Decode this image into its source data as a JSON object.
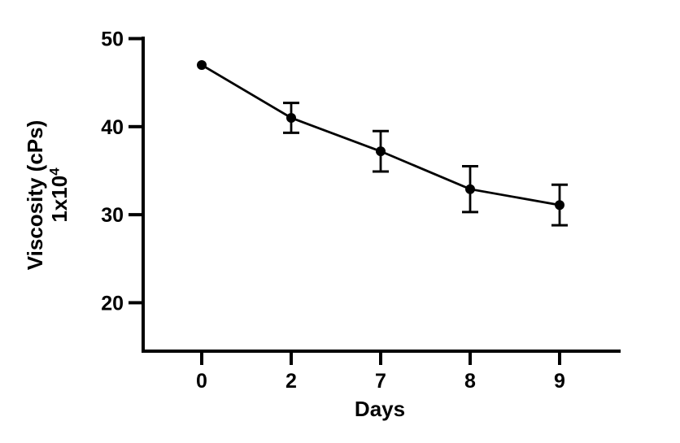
{
  "figure": {
    "background_color": "#ffffff",
    "ink_color": "#000000",
    "y_axis_title_line1": "Viscosity (cPs)",
    "y_axis_title_line2_base": "1x10",
    "y_axis_title_line2_exponent": "4"
  },
  "chart_data": {
    "type": "line",
    "title": "",
    "xlabel": "Days",
    "ylabel": "Viscosity (cPs) 1x10^4",
    "categories": [
      "0",
      "2",
      "7",
      "8",
      "9"
    ],
    "series": [
      {
        "name": "Viscosity",
        "values": [
          47,
          41,
          37.2,
          32.9,
          31.1
        ],
        "errors": [
          0,
          1.7,
          2.3,
          2.6,
          2.3
        ]
      }
    ],
    "yticks": [
      20,
      30,
      40,
      50
    ],
    "ylim": [
      14.5,
      50
    ],
    "x_spacing": "equal-categorical",
    "grid": false,
    "legend": "none",
    "marker": "filled-circle",
    "line_color": "#000000",
    "error_bar_style": "vertical-with-caps"
  }
}
